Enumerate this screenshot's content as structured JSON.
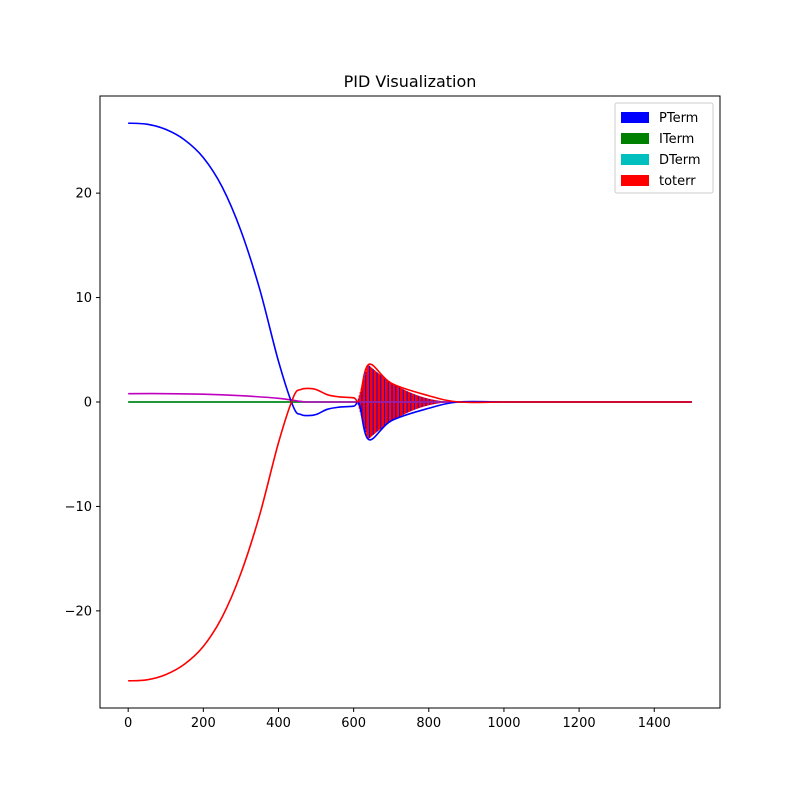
{
  "chart_data": {
    "type": "line",
    "title": "PID Visualization",
    "xlabel": "",
    "ylabel": "",
    "xlim": [
      -75,
      1575
    ],
    "ylim": [
      -29.3,
      29.3
    ],
    "x_ticks": [
      0,
      200,
      400,
      600,
      800,
      1000,
      1200,
      1400
    ],
    "x_tick_labels": [
      "0",
      "200",
      "400",
      "600",
      "800",
      "1000",
      "1200",
      "1400"
    ],
    "y_ticks": [
      -20,
      -10,
      0,
      10,
      20
    ],
    "y_tick_labels": [
      "−20",
      "−10",
      "0",
      "10",
      "20"
    ],
    "grid": false,
    "legend_position": "top-right",
    "legend": [
      {
        "name": "PTerm",
        "color": "#0000ff"
      },
      {
        "name": "ITerm",
        "color": "#008000"
      },
      {
        "name": "DTerm",
        "color": "#00bfbf"
      },
      {
        "name": "toterr",
        "color": "#ff0000"
      }
    ],
    "series": [
      {
        "name": "PTerm",
        "color": "#0000ff",
        "x": [
          0,
          50,
          100,
          150,
          200,
          250,
          300,
          350,
          400,
          440,
          460,
          480,
          500,
          530,
          560,
          600,
          615,
          640,
          700,
          800,
          880,
          1000,
          1200,
          1400,
          1500
        ],
        "y": [
          26.7,
          26.6,
          26.1,
          25.1,
          23.4,
          20.6,
          16.4,
          10.8,
          3.9,
          -0.5,
          -1.2,
          -1.3,
          -1.2,
          -0.7,
          -0.5,
          -0.4,
          -0.2,
          -3.6,
          -1.8,
          -0.6,
          0,
          0,
          0,
          0,
          0
        ]
      },
      {
        "name": "ITerm",
        "color": "#008000",
        "x": [
          0,
          1500
        ],
        "y": [
          0,
          0
        ]
      },
      {
        "name": "DTerm",
        "color": "#00bfbf",
        "x": [
          0,
          200,
          400,
          600,
          800,
          1000,
          1200,
          1400,
          1500
        ],
        "y": [
          0,
          0,
          0,
          0,
          0,
          0,
          0,
          0,
          0
        ]
      },
      {
        "name": "toterr",
        "color": "#ff0000",
        "x": [
          0,
          50,
          100,
          150,
          200,
          250,
          300,
          350,
          400,
          440,
          460,
          480,
          500,
          530,
          560,
          600,
          615,
          640,
          700,
          800,
          880,
          1000,
          1200,
          1400,
          1500
        ],
        "y": [
          -26.7,
          -26.6,
          -26.1,
          -25.1,
          -23.4,
          -20.6,
          -16.4,
          -10.8,
          -3.9,
          0.5,
          1.2,
          1.3,
          1.2,
          0.7,
          0.5,
          0.4,
          0.2,
          3.6,
          1.8,
          0.6,
          0,
          0,
          0,
          0,
          0
        ]
      },
      {
        "name": "",
        "color": "#bf00bf",
        "x": [
          0,
          100,
          200,
          300,
          400,
          460,
          480,
          600,
          800,
          1000,
          1200,
          1400,
          1500
        ],
        "y": [
          0.8,
          0.8,
          0.75,
          0.6,
          0.35,
          0.05,
          0,
          0,
          0,
          0,
          0,
          0,
          0
        ]
      }
    ],
    "oscillation": {
      "color_a": "#ff0000",
      "color_b": "#0000ff",
      "x_start": 610,
      "x_peak": 638,
      "x_end": 880,
      "peak_amplitude": 3.6
    }
  }
}
